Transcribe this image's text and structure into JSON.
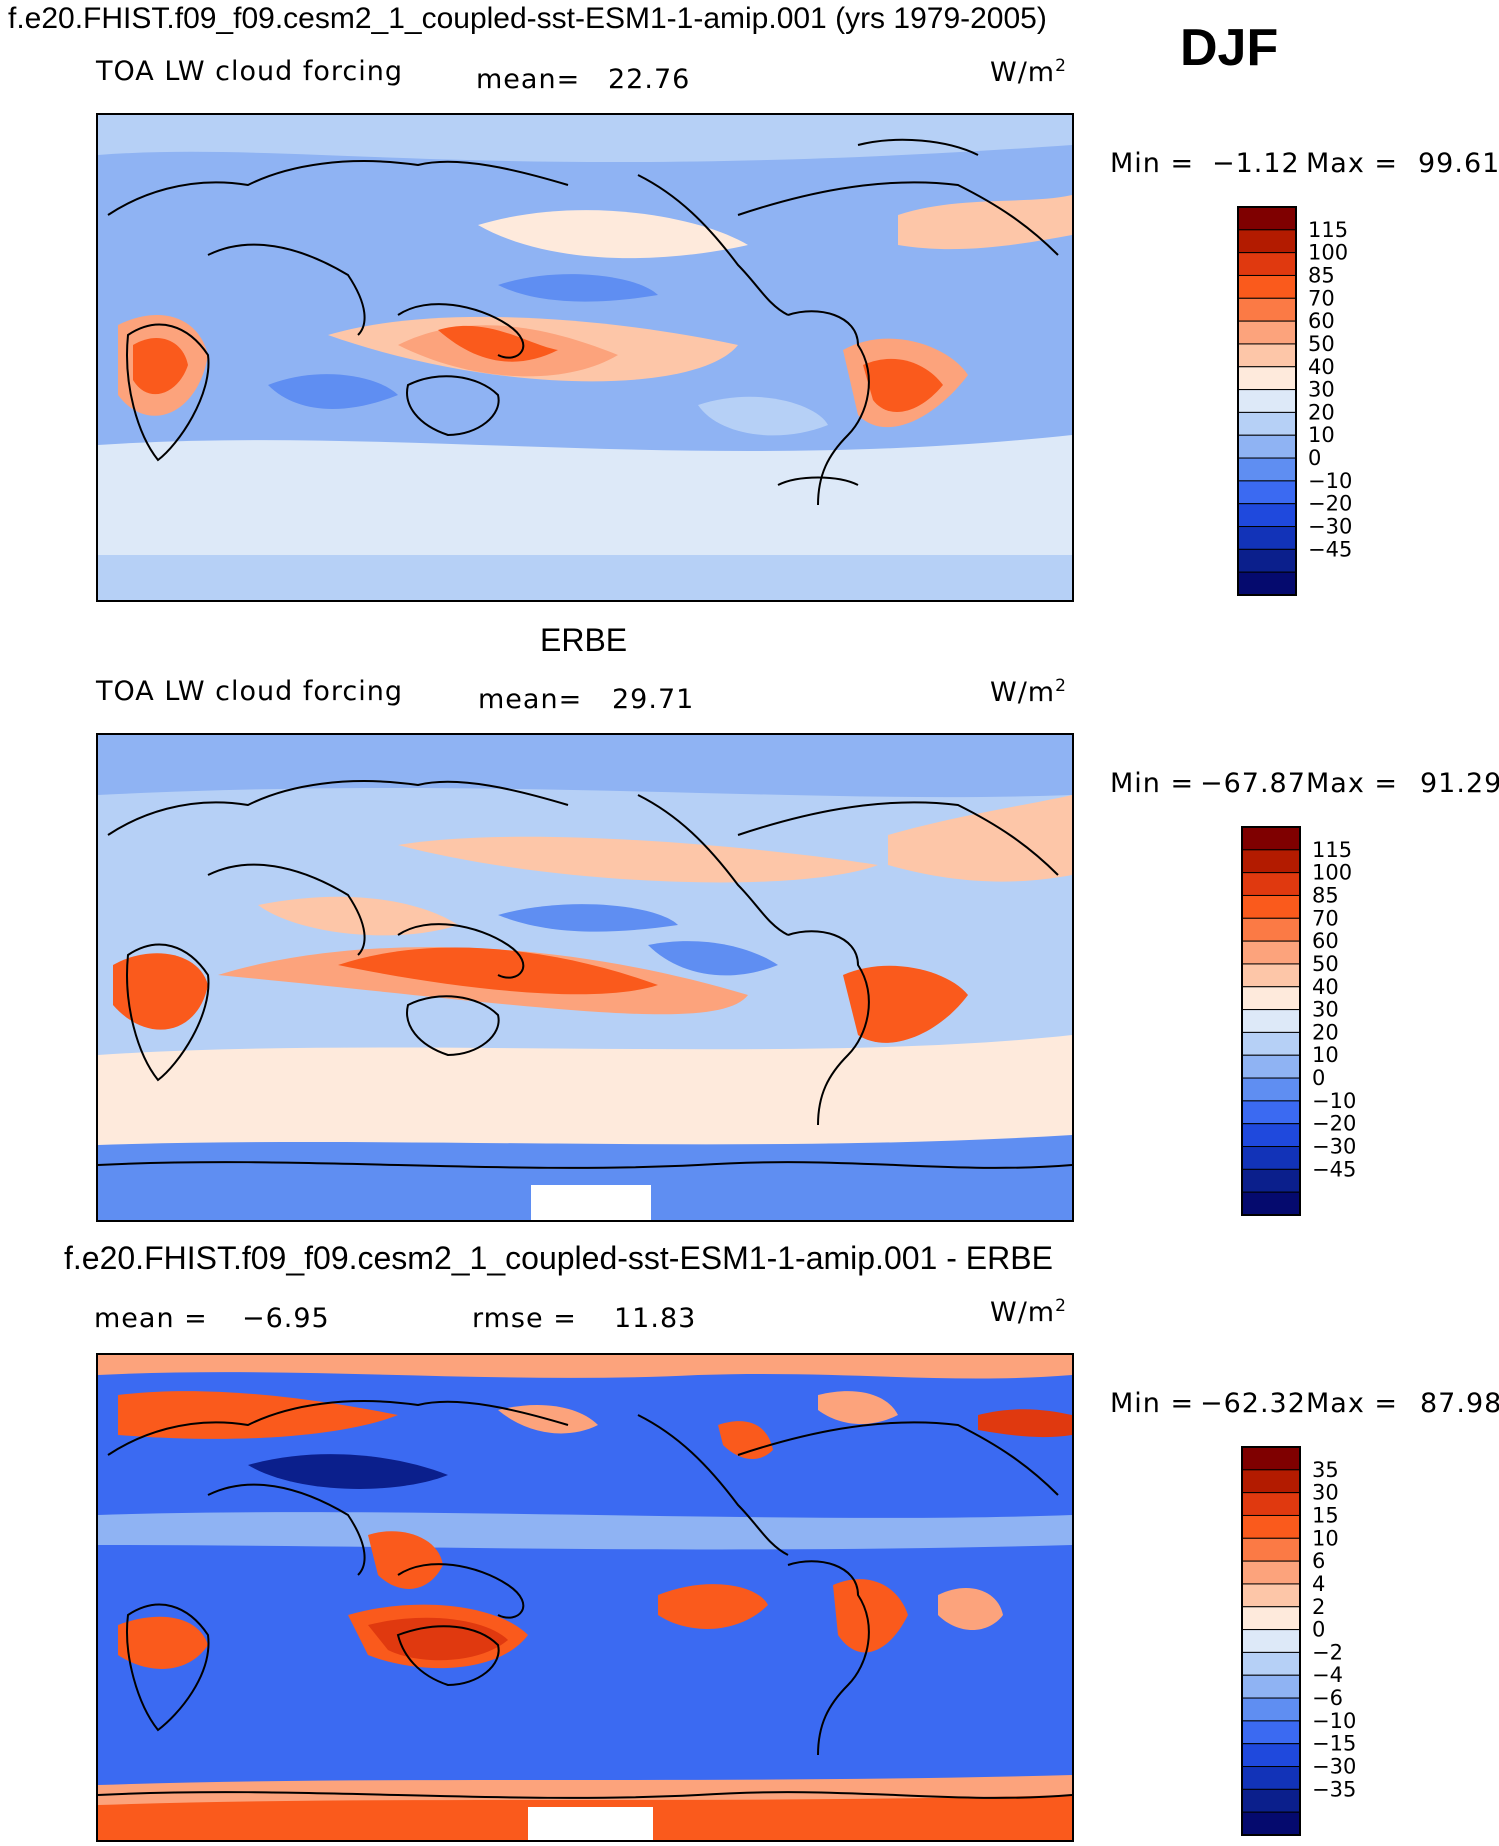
{
  "header": {
    "case_title": "f.e20.FHIST.f09_f09.cesm2_1_coupled-sst-ESM1-1-amip.001 (yrs 1979-2005)",
    "season": "DJF"
  },
  "panels": [
    {
      "id": "model",
      "title": "",
      "variable": "TOA LW cloud forcing",
      "stat1_label": "mean=",
      "stat1_value": "22.76",
      "stat2_label": "",
      "stat2_value": "",
      "units": "W/m",
      "units_sup": "2",
      "min_label": "Min =",
      "min_value": "−1.12",
      "max_label": "Max =",
      "max_value": "99.61",
      "colorbar": [
        "115",
        "100",
        "85",
        "70",
        "60",
        "50",
        "40",
        "30",
        "20",
        "10",
        "0",
        "−10",
        "−20",
        "−30",
        "−45"
      ]
    },
    {
      "id": "obs",
      "title": "ERBE",
      "variable": "TOA LW cloud forcing",
      "stat1_label": "mean=",
      "stat1_value": "29.71",
      "stat2_label": "",
      "stat2_value": "",
      "units": "W/m",
      "units_sup": "2",
      "min_label": "Min =",
      "min_value": "−67.87",
      "max_label": "Max =",
      "max_value": "91.29",
      "colorbar": [
        "115",
        "100",
        "85",
        "70",
        "60",
        "50",
        "40",
        "30",
        "20",
        "10",
        "0",
        "−10",
        "−20",
        "−30",
        "−45"
      ]
    },
    {
      "id": "diff",
      "title": "f.e20.FHIST.f09_f09.cesm2_1_coupled-sst-ESM1-1-amip.001 - ERBE",
      "variable": "",
      "stat1_label": "mean =",
      "stat1_value": "−6.95",
      "stat2_label": "rmse =",
      "stat2_value": "11.83",
      "units": "W/m",
      "units_sup": "2",
      "min_label": "Min =",
      "min_value": "−62.32",
      "max_label": "Max =",
      "max_value": "87.98",
      "colorbar": [
        "35",
        "30",
        "15",
        "10",
        "6",
        "4",
        "2",
        "0",
        "−2",
        "−4",
        "−6",
        "−10",
        "−15",
        "−30",
        "−35"
      ]
    }
  ],
  "palette": [
    "#7f0000",
    "#b31b00",
    "#e0390f",
    "#fa5a1c",
    "#fb7a45",
    "#fca37c",
    "#fdc6a8",
    "#feeadc",
    "#dde9f8",
    "#b6d0f6",
    "#8fb3f3",
    "#5f8ef2",
    "#3b6af2",
    "#1f49dd",
    "#1233b8",
    "#0b1f8c",
    "#050a6e"
  ]
}
